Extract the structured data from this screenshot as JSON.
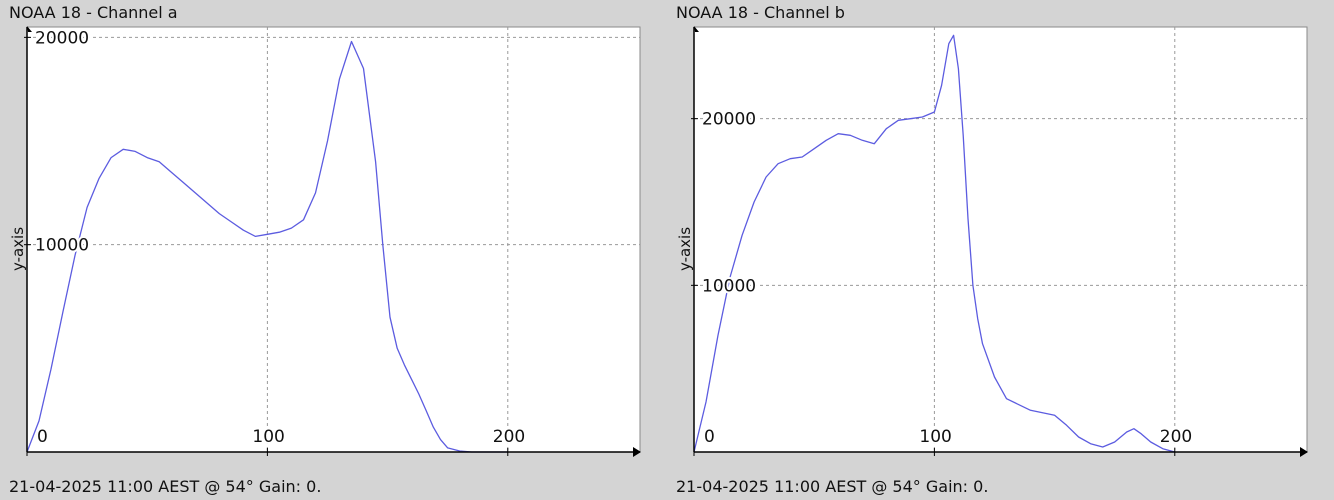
{
  "chart_data": [
    {
      "type": "line",
      "title": "NOAA 18 - Channel a",
      "footer": "21-04-2025 11:00 AEST @ 54° Gain: 0.",
      "xlabel": "",
      "ylabel": "y-axis",
      "xlim": [
        0,
        255
      ],
      "ylim": [
        0,
        20500
      ],
      "x_ticks": [
        0,
        100,
        200
      ],
      "y_ticks": [
        10000,
        20000
      ],
      "grid": true,
      "colors": {
        "line": "#5c5ce0",
        "grid": "#9a9a9a",
        "axis": "#000000"
      },
      "series": [
        {
          "x": [
            0,
            5,
            10,
            15,
            20,
            25,
            30,
            35,
            40,
            45,
            50,
            55,
            60,
            65,
            70,
            75,
            80,
            85,
            90,
            95,
            100,
            105,
            110,
            115,
            120,
            125,
            130,
            135,
            140,
            145,
            148,
            151,
            154,
            157,
            160,
            163,
            166,
            169,
            172,
            175,
            180,
            185,
            190,
            195,
            200
          ],
          "y": [
            0,
            1500,
            4000,
            6800,
            9500,
            11800,
            13200,
            14200,
            14600,
            14500,
            14200,
            14000,
            13500,
            13000,
            12500,
            12000,
            11500,
            11100,
            10700,
            10400,
            10500,
            10600,
            10800,
            11200,
            12500,
            15000,
            18000,
            19800,
            18500,
            14000,
            10000,
            6500,
            5000,
            4200,
            3500,
            2800,
            2000,
            1200,
            600,
            200,
            50,
            0,
            0,
            0,
            0
          ]
        }
      ]
    },
    {
      "type": "line",
      "title": "NOAA 18 - Channel b",
      "footer": "21-04-2025 11:00 AEST @ 54° Gain: 0.",
      "xlabel": "",
      "ylabel": "y-axis",
      "xlim": [
        0,
        255
      ],
      "ylim": [
        0,
        25500
      ],
      "x_ticks": [
        0,
        100,
        200
      ],
      "y_ticks": [
        10000,
        20000
      ],
      "grid": true,
      "colors": {
        "line": "#5c5ce0",
        "grid": "#9a9a9a",
        "axis": "#000000"
      },
      "series": [
        {
          "x": [
            0,
            5,
            10,
            15,
            20,
            25,
            30,
            35,
            40,
            45,
            50,
            55,
            60,
            65,
            70,
            75,
            80,
            85,
            90,
            95,
            100,
            103,
            106,
            108,
            110,
            112,
            114,
            116,
            118,
            120,
            125,
            130,
            140,
            150,
            155,
            160,
            165,
            170,
            175,
            180,
            183,
            186,
            190,
            195,
            200
          ],
          "y": [
            0,
            3000,
            7000,
            10500,
            13000,
            15000,
            16500,
            17300,
            17600,
            17700,
            18200,
            18700,
            19100,
            19000,
            18700,
            18500,
            19400,
            19900,
            20000,
            20100,
            20400,
            22000,
            24500,
            25000,
            23000,
            19000,
            14000,
            10000,
            8000,
            6500,
            4500,
            3200,
            2500,
            2200,
            1600,
            900,
            500,
            300,
            600,
            1200,
            1400,
            1100,
            600,
            200,
            0
          ]
        }
      ]
    }
  ]
}
